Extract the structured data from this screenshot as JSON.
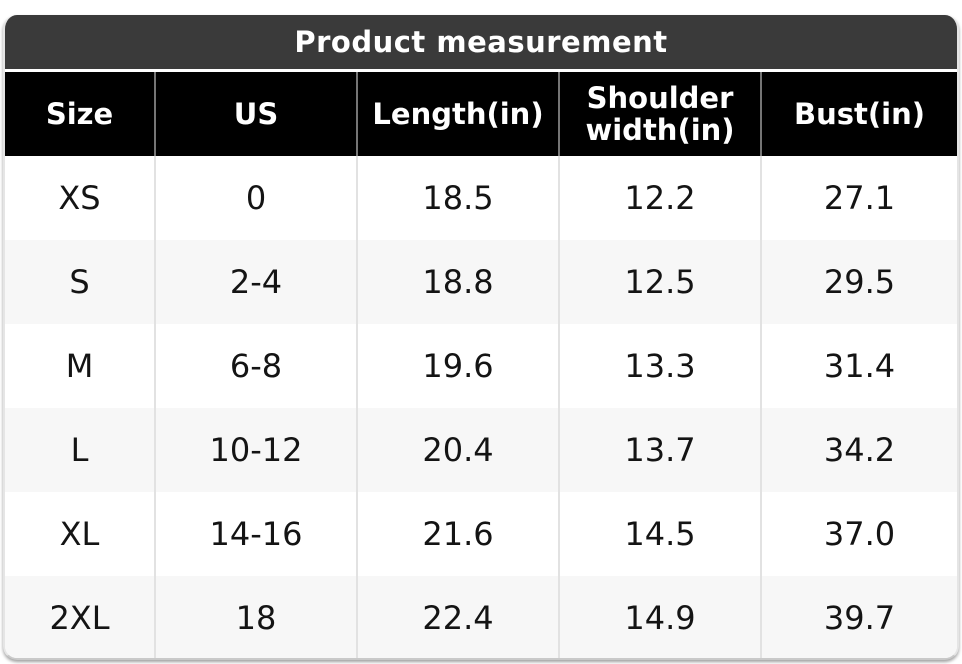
{
  "chart_data": {
    "type": "table",
    "title": "Product measurement",
    "columns": [
      "Size",
      "US",
      "Length(in)",
      "Shoulder width(in)",
      "Bust(in)"
    ],
    "rows": [
      [
        "XS",
        "0",
        "18.5",
        "12.2",
        "27.1"
      ],
      [
        "S",
        "2-4",
        "18.8",
        "12.5",
        "29.5"
      ],
      [
        "M",
        "6-8",
        "19.6",
        "13.3",
        "31.4"
      ],
      [
        "L",
        "10-12",
        "20.4",
        "13.7",
        "34.2"
      ],
      [
        "XL",
        "14-16",
        "21.6",
        "14.5",
        "37.0"
      ],
      [
        "2XL",
        "18",
        "22.4",
        "14.9",
        "39.7"
      ]
    ],
    "layout": {
      "striped": true,
      "stripe_rows": "even (S, L, 2XL)",
      "text_align": "center"
    },
    "colors": {
      "title_bar_bg": "#3a3a3a",
      "title_text": "#ffffff",
      "header_bg": "#000000",
      "header_text": "#ffffff",
      "header_divider": "#757575",
      "row_bg": "#ffffff",
      "row_alt_bg": "#f7f7f7",
      "row_divider": "#e2e2e2",
      "body_text": "#141414"
    }
  }
}
